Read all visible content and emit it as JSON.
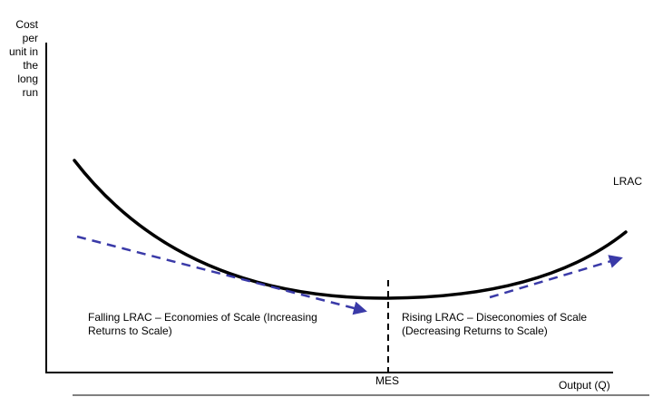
{
  "diagram": {
    "y_axis_label_lines": [
      "Cost",
      "per",
      "unit in",
      "the",
      "long",
      "run"
    ],
    "x_axis_label": "Output (Q)",
    "curve_label": "LRAC",
    "mes_label": "MES",
    "falling_annotation": {
      "line1": "Falling LRAC – Economies of Scale (Increasing",
      "line2": "Returns to Scale)"
    },
    "rising_annotation": {
      "line1": "Rising LRAC – Diseconomies of Scale",
      "line2": "(Decreasing Returns to Scale)"
    },
    "colors": {
      "axes": "#000000",
      "curve": "#000000",
      "arrows": "#3a3aa8",
      "mes_line": "#000000"
    }
  }
}
